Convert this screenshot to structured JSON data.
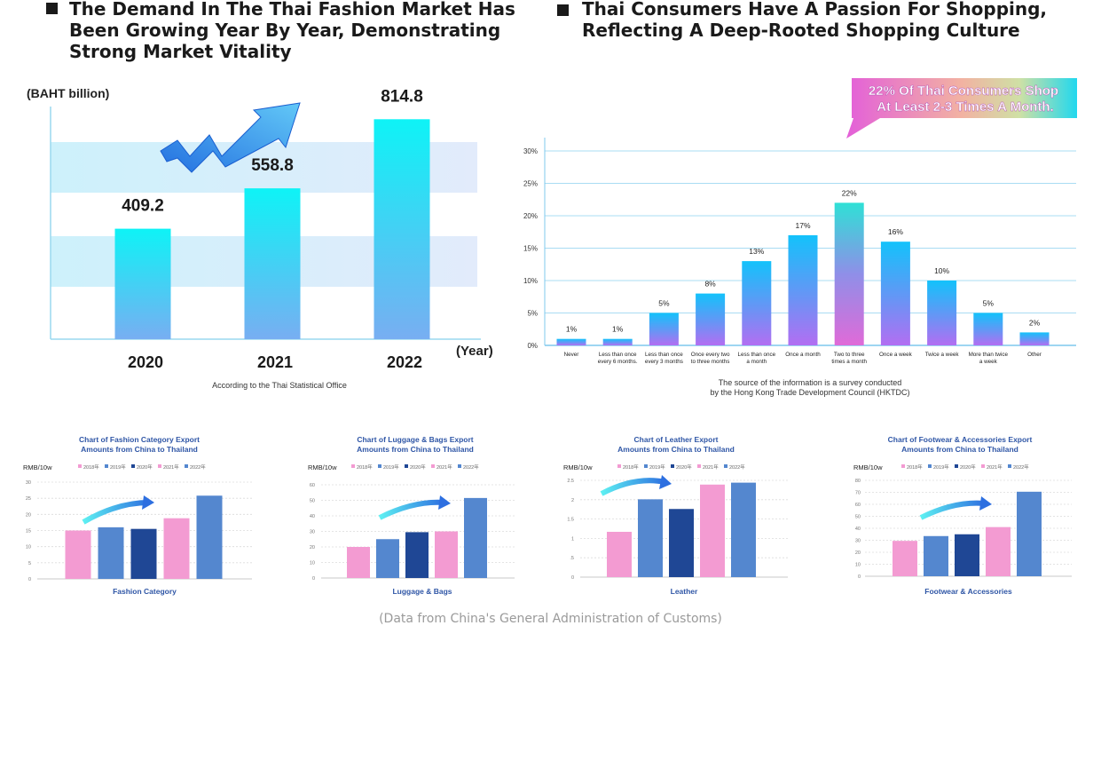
{
  "headings": {
    "left": "The Demand In The Thai Fashion Market Has Been Growing Year By Year, Demonstrating Strong Market Vitality",
    "right": "Thai Consumers Have A Passion For Shopping, Reflecting A Deep-Rooted Shopping Culture"
  },
  "footer": "(Data from China's General Administration of Customs)",
  "chart_data": [
    {
      "type": "bar",
      "id": "market",
      "title": "",
      "ylabel": "(BAHT billion)",
      "xlabel": "(Year)",
      "categories": [
        "2020",
        "2021",
        "2022"
      ],
      "values": [
        409.2,
        558.8,
        814.8
      ],
      "value_labels": [
        "409.2",
        "558.8",
        "814.8"
      ],
      "ylim": [
        0,
        1000
      ],
      "source": "According to the Thai Statistical Office"
    },
    {
      "type": "bar",
      "id": "frequency",
      "callout": "22% Of Thai Consumers Shop At Least 2-3 Times A Month.",
      "ylim": [
        0,
        30
      ],
      "yticks": [
        "0%",
        "5%",
        "10%",
        "15%",
        "20%",
        "25%",
        "30%"
      ],
      "categories": [
        [
          "Never"
        ],
        [
          "Less than once",
          "every 6 months."
        ],
        [
          "Less than once",
          "every 3 months"
        ],
        [
          "Once every two",
          "to three months"
        ],
        [
          "Less than once",
          "a month"
        ],
        [
          "Once a month"
        ],
        [
          "Two to three",
          "times a month"
        ],
        [
          "Once a week"
        ],
        [
          "Twice a week"
        ],
        [
          "More than twice",
          "a week"
        ],
        [
          "Other"
        ]
      ],
      "values": [
        1,
        1,
        5,
        8,
        13,
        17,
        22,
        16,
        10,
        5,
        2
      ],
      "value_labels": [
        "1%",
        "1%",
        "5%",
        "8%",
        "13%",
        "17%",
        "22%",
        "16%",
        "10%",
        "5%",
        "2%"
      ],
      "source": "The source of the information is a survey conducted by the Hong Kong Trade Development Council (HKTDC)"
    },
    {
      "type": "bar",
      "id": "fashion",
      "title": "Chart of Fashion Category Export Amounts from China to Thailand",
      "ylabel": "RMB/10w",
      "xlabel": "Fashion Category",
      "legend": [
        "2018年",
        "2019年",
        "2020年",
        "2021年",
        "2022年"
      ],
      "series_colors": [
        "#f39bd2",
        "#5487cf",
        "#1f4795",
        "#f39bd2",
        "#5487cf"
      ],
      "yticks": [
        "0",
        "5",
        "10",
        "15",
        "20",
        "25",
        "30"
      ],
      "ylim": [
        0,
        30
      ],
      "values": [
        15,
        16,
        15.5,
        18.8,
        25.8
      ]
    },
    {
      "type": "bar",
      "id": "luggage",
      "title": "Chart of  Luggage & Bags Export Amounts from China to Thailand",
      "ylabel": "RMB/10w",
      "xlabel": "Luggage & Bags",
      "legend": [
        "2018年",
        "2019年",
        "2020年",
        "2021年",
        "2022年"
      ],
      "series_colors": [
        "#f39bd2",
        "#5487cf",
        "#1f4795",
        "#f39bd2",
        "#5487cf"
      ],
      "yticks": [
        "0",
        "10",
        "20",
        "30",
        "40",
        "50",
        "60"
      ],
      "ylim": [
        0,
        60
      ],
      "values": [
        20,
        25,
        29.5,
        30,
        51.5
      ]
    },
    {
      "type": "bar",
      "id": "leather",
      "title": "Chart of  Leather Export Amounts from China to Thailand",
      "ylabel": "RMB/10w",
      "xlabel": "Leather",
      "legend": [
        "2018年",
        "2019年",
        "2020年",
        "2021年",
        "2022年"
      ],
      "series_colors": [
        "#f39bd2",
        "#5487cf",
        "#1f4795",
        "#f39bd2",
        "#5487cf"
      ],
      "yticks": [
        "0",
        ".5",
        "1",
        "1.5",
        "2",
        "2.5"
      ],
      "ylim": [
        0,
        2.5
      ],
      "values": [
        1.17,
        2.01,
        1.76,
        2.39,
        2.44
      ]
    },
    {
      "type": "bar",
      "id": "footwear",
      "title": "Chart of Footwear & Accessories Export Amounts from China to Thailand",
      "ylabel": "RMB/10w",
      "xlabel": "Footwear & Accessories",
      "legend": [
        "2018年",
        "2019年",
        "2020年",
        "2021年",
        "2022年"
      ],
      "series_colors": [
        "#f39bd2",
        "#5487cf",
        "#1f4795",
        "#f39bd2",
        "#5487cf"
      ],
      "yticks": [
        "0",
        "10",
        "20",
        "30",
        "40",
        "50",
        "60",
        "70",
        "80"
      ],
      "ylim": [
        0,
        80
      ],
      "values": [
        29.5,
        33.5,
        35,
        41,
        70.5
      ]
    }
  ]
}
